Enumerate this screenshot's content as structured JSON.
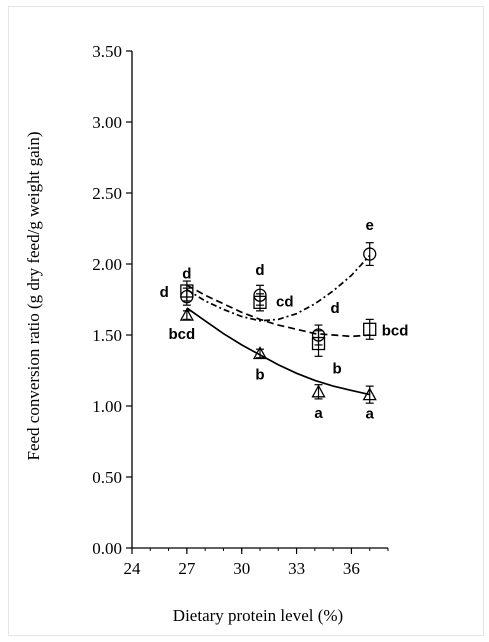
{
  "chart_data": {
    "type": "scatter",
    "xlabel": "Dietary protein level (%)",
    "ylabel": "Feed conversion ratio (g dry feed/g weight gain)",
    "xlim": [
      24,
      38
    ],
    "ylim": [
      0,
      3.5
    ],
    "xticks": [
      "24",
      "27",
      "30",
      "33",
      "36"
    ],
    "yticks": [
      "0.00",
      "0.50",
      "1.00",
      "1.50",
      "2.00",
      "2.50",
      "3.00",
      "3.50"
    ],
    "grid": false,
    "legend": "none",
    "series": [
      {
        "marker": "circle",
        "line": "dash-dot",
        "points": [
          {
            "x": 27.0,
            "y": 1.77,
            "err": 0.06,
            "label": "d"
          },
          {
            "x": 31.0,
            "y": 1.78,
            "err": 0.07,
            "label": "d"
          },
          {
            "x": 34.2,
            "y": 1.5,
            "err": 0.07,
            "label": "d"
          },
          {
            "x": 37.0,
            "y": 2.07,
            "err": 0.08,
            "label": "e"
          }
        ],
        "fit": [
          [
            27.0,
            1.82
          ],
          [
            28.0,
            1.74
          ],
          [
            29.0,
            1.68
          ],
          [
            30.0,
            1.63
          ],
          [
            31.0,
            1.6
          ],
          [
            32.0,
            1.61
          ],
          [
            33.0,
            1.65
          ],
          [
            34.0,
            1.72
          ],
          [
            35.0,
            1.81
          ],
          [
            36.0,
            1.92
          ],
          [
            37.0,
            2.06
          ]
        ]
      },
      {
        "marker": "square",
        "line": "dashed",
        "points": [
          {
            "x": 27.0,
            "y": 1.81,
            "err": 0.07,
            "label": "d"
          },
          {
            "x": 31.0,
            "y": 1.73,
            "err": 0.06,
            "label": "cd"
          },
          {
            "x": 34.2,
            "y": 1.44,
            "err": 0.09,
            "label": "b"
          },
          {
            "x": 37.0,
            "y": 1.54,
            "err": 0.07,
            "label": "bcd"
          }
        ],
        "fit": [
          [
            27.0,
            1.85
          ],
          [
            28.0,
            1.78
          ],
          [
            29.0,
            1.72
          ],
          [
            30.0,
            1.66
          ],
          [
            31.0,
            1.61
          ],
          [
            32.0,
            1.57
          ],
          [
            33.0,
            1.54
          ],
          [
            34.0,
            1.51
          ],
          [
            35.0,
            1.5
          ],
          [
            36.0,
            1.49
          ],
          [
            37.0,
            1.5
          ]
        ]
      },
      {
        "marker": "triangle",
        "line": "solid",
        "points": [
          {
            "x": 27.0,
            "y": 1.64,
            "err": 0.03,
            "label": "bcd"
          },
          {
            "x": 31.0,
            "y": 1.37,
            "err": 0.03,
            "label": "b"
          },
          {
            "x": 34.2,
            "y": 1.1,
            "err": 0.05,
            "label": "a"
          },
          {
            "x": 37.0,
            "y": 1.08,
            "err": 0.06,
            "label": "a"
          }
        ],
        "fit": [
          [
            27.0,
            1.69
          ],
          [
            28.0,
            1.6
          ],
          [
            29.0,
            1.51
          ],
          [
            30.0,
            1.43
          ],
          [
            31.0,
            1.36
          ],
          [
            32.0,
            1.29
          ],
          [
            33.0,
            1.23
          ],
          [
            34.0,
            1.18
          ],
          [
            35.0,
            1.14
          ],
          [
            36.0,
            1.11
          ],
          [
            37.0,
            1.08
          ]
        ]
      }
    ]
  }
}
